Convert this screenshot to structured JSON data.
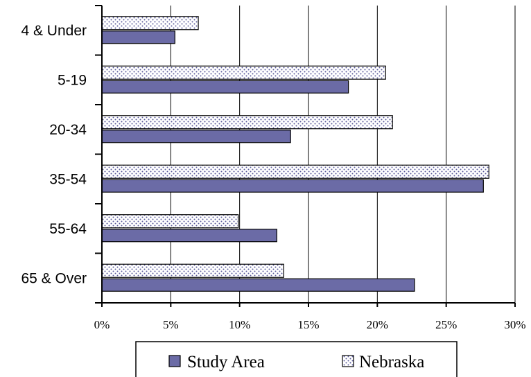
{
  "chart_data": {
    "type": "bar",
    "orientation": "horizontal",
    "categories": [
      "4 & Under",
      "5-19",
      "20-34",
      "35-54",
      "55-64",
      "65 & Over"
    ],
    "series": [
      {
        "name": "Nebraska",
        "values": [
          7.0,
          20.6,
          21.1,
          28.1,
          9.9,
          13.2
        ],
        "pattern": "dotted",
        "color": "#ffffff",
        "dot_color": "#5b5b9b"
      },
      {
        "name": "Study Area",
        "values": [
          5.3,
          17.9,
          13.7,
          27.7,
          12.7,
          22.7
        ],
        "pattern": "solid",
        "color": "#6b6ba6"
      }
    ],
    "x_ticks": [
      "0%",
      "5%",
      "10%",
      "15%",
      "20%",
      "25%",
      "30%"
    ],
    "xlim": [
      0,
      30
    ],
    "grid": true,
    "legend": {
      "position": "bottom",
      "entries": [
        "Study Area",
        "Nebraska"
      ]
    }
  }
}
